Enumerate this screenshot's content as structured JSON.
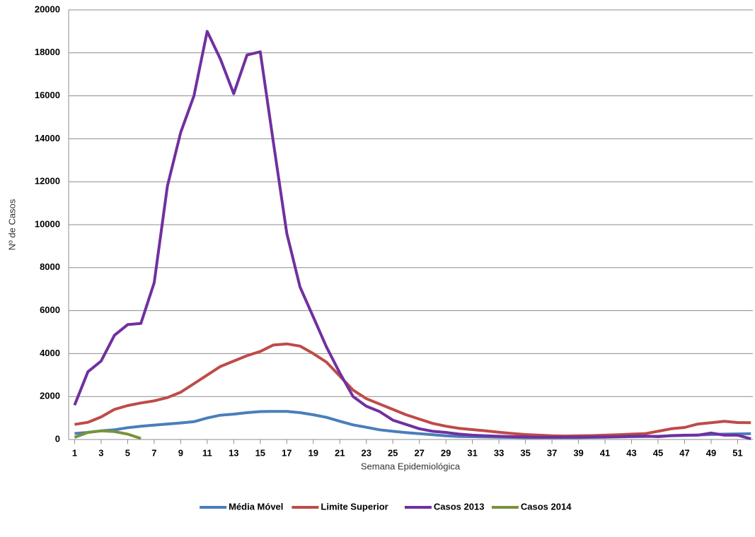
{
  "chart_data": {
    "type": "line",
    "x_label": "Semana Epidemiológica",
    "y_label": "Nº de Casos",
    "x": [
      1,
      2,
      3,
      4,
      5,
      6,
      7,
      8,
      9,
      10,
      11,
      12,
      13,
      14,
      15,
      16,
      17,
      18,
      19,
      20,
      21,
      22,
      23,
      24,
      25,
      26,
      27,
      28,
      29,
      30,
      31,
      32,
      33,
      34,
      35,
      36,
      37,
      38,
      39,
      40,
      41,
      42,
      43,
      44,
      45,
      46,
      47,
      48,
      49,
      50,
      51,
      52
    ],
    "xlim": [
      0.55,
      52.15
    ],
    "xticks": [
      1,
      3,
      5,
      7,
      9,
      11,
      13,
      15,
      17,
      19,
      21,
      23,
      25,
      27,
      29,
      31,
      33,
      35,
      37,
      39,
      41,
      43,
      45,
      47,
      49,
      51
    ],
    "ylim": [
      0,
      20000
    ],
    "yticks": [
      0,
      2000,
      4000,
      6000,
      8000,
      10000,
      12000,
      14000,
      16000,
      18000,
      20000
    ],
    "grid": true,
    "legend": "bottom",
    "series": [
      {
        "name": "Média Móvel",
        "color": "#4a7ebb",
        "values": [
          280,
          330,
          400,
          450,
          550,
          620,
          670,
          720,
          770,
          830,
          1000,
          1130,
          1180,
          1250,
          1300,
          1310,
          1310,
          1250,
          1150,
          1030,
          850,
          680,
          570,
          450,
          380,
          320,
          270,
          220,
          170,
          140,
          130,
          120,
          110,
          100,
          90,
          90,
          90,
          90,
          90,
          100,
          110,
          120,
          130,
          140,
          150,
          170,
          190,
          210,
          230,
          250,
          260,
          270
        ]
      },
      {
        "name": "Limite Superior",
        "color": "#be4b48",
        "values": [
          700,
          800,
          1050,
          1400,
          1580,
          1700,
          1800,
          1950,
          2200,
          2600,
          3000,
          3400,
          3650,
          3900,
          4100,
          4400,
          4450,
          4350,
          4000,
          3600,
          2950,
          2300,
          1900,
          1650,
          1400,
          1150,
          950,
          750,
          620,
          520,
          460,
          400,
          340,
          280,
          230,
          200,
          170,
          160,
          170,
          180,
          200,
          220,
          250,
          270,
          380,
          500,
          560,
          720,
          780,
          850,
          790,
          780
        ]
      },
      {
        "name": "Casos 2013",
        "color": "#7030a0",
        "values": [
          1600,
          3150,
          3650,
          4850,
          5350,
          5400,
          7300,
          11800,
          14300,
          16000,
          19000,
          17700,
          16100,
          17900,
          18050,
          13800,
          9600,
          7100,
          5700,
          4300,
          3100,
          2000,
          1550,
          1300,
          900,
          700,
          500,
          380,
          330,
          250,
          200,
          170,
          150,
          130,
          120,
          110,
          110,
          110,
          110,
          120,
          120,
          130,
          150,
          160,
          130,
          180,
          200,
          200,
          300,
          200,
          200,
          30
        ]
      },
      {
        "name": "Casos 2014",
        "color": "#77933c",
        "values": [
          100,
          330,
          400,
          370,
          250,
          50,
          null,
          null,
          null,
          null,
          null,
          null,
          null,
          null,
          null,
          null,
          null,
          null,
          null,
          null,
          null,
          null,
          null,
          null,
          null,
          null,
          null,
          null,
          null,
          null,
          null,
          null,
          null,
          null,
          null,
          null,
          null,
          null,
          null,
          null,
          null,
          null,
          null,
          null,
          null,
          null,
          null,
          null,
          null,
          null,
          null,
          null
        ]
      }
    ]
  }
}
